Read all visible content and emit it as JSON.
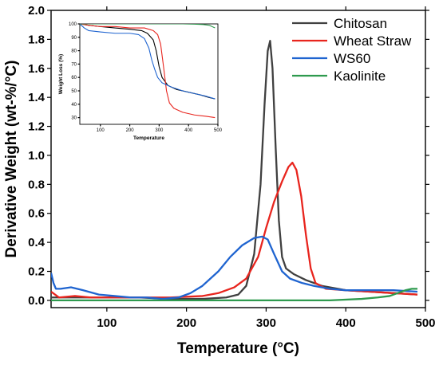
{
  "chart_data": [
    {
      "type": "line",
      "xlabel": "Temperature (°C)",
      "ylabel": "Derivative Weight (wt-%/°C)",
      "xlim": [
        30,
        500
      ],
      "ylim": [
        -0.05,
        2.0
      ],
      "x_ticks": [
        "100",
        "200",
        "300",
        "400",
        "500"
      ],
      "y_ticks": [
        "0.0",
        "0.2",
        "0.4",
        "0.6",
        "0.8",
        "1.0",
        "1.2",
        "1.4",
        "1.6",
        "1.8",
        "2.0"
      ],
      "legend_position": "top-right",
      "grid": false,
      "series": [
        {
          "name": "Chitosan",
          "color": "#404040",
          "points": [
            [
              30,
              0.02
            ],
            [
              60,
              0.02
            ],
            [
              100,
              0.02
            ],
            [
              140,
              0.02
            ],
            [
              180,
              0.01
            ],
            [
              220,
              0.01
            ],
            [
              250,
              0.02
            ],
            [
              265,
              0.04
            ],
            [
              275,
              0.1
            ],
            [
              285,
              0.32
            ],
            [
              293,
              0.8
            ],
            [
              298,
              1.35
            ],
            [
              302,
              1.72
            ],
            [
              305,
              1.79
            ],
            [
              308,
              1.6
            ],
            [
              312,
              1.05
            ],
            [
              316,
              0.55
            ],
            [
              320,
              0.3
            ],
            [
              325,
              0.22
            ],
            [
              335,
              0.18
            ],
            [
              350,
              0.14
            ],
            [
              370,
              0.1
            ],
            [
              400,
              0.07
            ],
            [
              430,
              0.06
            ],
            [
              460,
              0.05
            ],
            [
              490,
              0.04
            ]
          ]
        },
        {
          "name": "Wheat Straw",
          "color": "#e8251e",
          "points": [
            [
              30,
              0.06
            ],
            [
              40,
              0.02
            ],
            [
              60,
              0.03
            ],
            [
              80,
              0.02
            ],
            [
              100,
              0.02
            ],
            [
              140,
              0.02
            ],
            [
              180,
              0.02
            ],
            [
              220,
              0.03
            ],
            [
              240,
              0.05
            ],
            [
              260,
              0.09
            ],
            [
              275,
              0.15
            ],
            [
              290,
              0.3
            ],
            [
              300,
              0.5
            ],
            [
              310,
              0.68
            ],
            [
              320,
              0.82
            ],
            [
              328,
              0.92
            ],
            [
              333,
              0.95
            ],
            [
              338,
              0.9
            ],
            [
              344,
              0.72
            ],
            [
              350,
              0.45
            ],
            [
              356,
              0.22
            ],
            [
              362,
              0.12
            ],
            [
              375,
              0.08
            ],
            [
              400,
              0.07
            ],
            [
              430,
              0.06
            ],
            [
              460,
              0.05
            ],
            [
              490,
              0.04
            ]
          ]
        },
        {
          "name": "WS60",
          "color": "#1f64d0",
          "points": [
            [
              30,
              0.19
            ],
            [
              33,
              0.12
            ],
            [
              36,
              0.08
            ],
            [
              42,
              0.08
            ],
            [
              55,
              0.09
            ],
            [
              70,
              0.07
            ],
            [
              90,
              0.04
            ],
            [
              110,
              0.03
            ],
            [
              130,
              0.02
            ],
            [
              150,
              0.02
            ],
            [
              170,
              0.01
            ],
            [
              190,
              0.02
            ],
            [
              205,
              0.05
            ],
            [
              220,
              0.1
            ],
            [
              240,
              0.2
            ],
            [
              255,
              0.3
            ],
            [
              270,
              0.38
            ],
            [
              285,
              0.43
            ],
            [
              295,
              0.44
            ],
            [
              302,
              0.42
            ],
            [
              310,
              0.32
            ],
            [
              320,
              0.2
            ],
            [
              330,
              0.15
            ],
            [
              345,
              0.12
            ],
            [
              360,
              0.1
            ],
            [
              380,
              0.08
            ],
            [
              400,
              0.07
            ],
            [
              430,
              0.07
            ],
            [
              460,
              0.07
            ],
            [
              490,
              0.06
            ]
          ]
        },
        {
          "name": "Kaolinite",
          "color": "#2e9a4e",
          "points": [
            [
              30,
              0.0
            ],
            [
              100,
              0.0
            ],
            [
              200,
              0.0
            ],
            [
              300,
              0.0
            ],
            [
              380,
              0.0
            ],
            [
              420,
              0.01
            ],
            [
              440,
              0.02
            ],
            [
              455,
              0.03
            ],
            [
              465,
              0.05
            ],
            [
              475,
              0.07
            ],
            [
              483,
              0.08
            ],
            [
              490,
              0.08
            ]
          ]
        }
      ]
    },
    {
      "type": "line",
      "xlabel": "Temperature",
      "ylabel": "Weight Loss (%)",
      "xlim": [
        30,
        500
      ],
      "ylim": [
        25,
        100
      ],
      "x_ticks": [
        "100",
        "200",
        "300",
        "400",
        "500"
      ],
      "y_ticks": [
        "30",
        "40",
        "50",
        "60",
        "70",
        "80",
        "90",
        "100"
      ],
      "series": [
        {
          "color": "#000000",
          "points": [
            [
              30,
              100
            ],
            [
              60,
              99
            ],
            [
              100,
              98
            ],
            [
              150,
              97
            ],
            [
              200,
              96
            ],
            [
              240,
              95
            ],
            [
              260,
              93
            ],
            [
              280,
              88
            ],
            [
              290,
              80
            ],
            [
              300,
              68
            ],
            [
              310,
              60
            ],
            [
              330,
              54
            ],
            [
              360,
              51
            ],
            [
              400,
              49
            ],
            [
              440,
              47
            ],
            [
              470,
              45
            ],
            [
              490,
              44
            ]
          ]
        },
        {
          "color": "#e8251e",
          "points": [
            [
              30,
              100
            ],
            [
              60,
              99
            ],
            [
              100,
              98
            ],
            [
              150,
              98
            ],
            [
              200,
              97
            ],
            [
              250,
              97
            ],
            [
              280,
              95
            ],
            [
              295,
              92
            ],
            [
              305,
              85
            ],
            [
              315,
              68
            ],
            [
              325,
              50
            ],
            [
              335,
              41
            ],
            [
              350,
              37
            ],
            [
              380,
              34
            ],
            [
              420,
              32
            ],
            [
              460,
              31
            ],
            [
              490,
              30
            ]
          ]
        },
        {
          "color": "#1f64d0",
          "points": [
            [
              30,
              100
            ],
            [
              45,
              97
            ],
            [
              60,
              95
            ],
            [
              100,
              94
            ],
            [
              150,
              93
            ],
            [
              200,
              93
            ],
            [
              230,
              92
            ],
            [
              250,
              89
            ],
            [
              265,
              82
            ],
            [
              275,
              73
            ],
            [
              285,
              66
            ],
            [
              295,
              60
            ],
            [
              310,
              56
            ],
            [
              340,
              53
            ],
            [
              380,
              50
            ],
            [
              420,
              48
            ],
            [
              460,
              46
            ],
            [
              490,
              44
            ]
          ]
        },
        {
          "color": "#2e9a4e",
          "points": [
            [
              30,
              100
            ],
            [
              100,
              100
            ],
            [
              200,
              100
            ],
            [
              300,
              100
            ],
            [
              380,
              100
            ],
            [
              420,
              99.8
            ],
            [
              450,
              99.5
            ],
            [
              470,
              99
            ],
            [
              490,
              97
            ]
          ]
        }
      ]
    }
  ]
}
